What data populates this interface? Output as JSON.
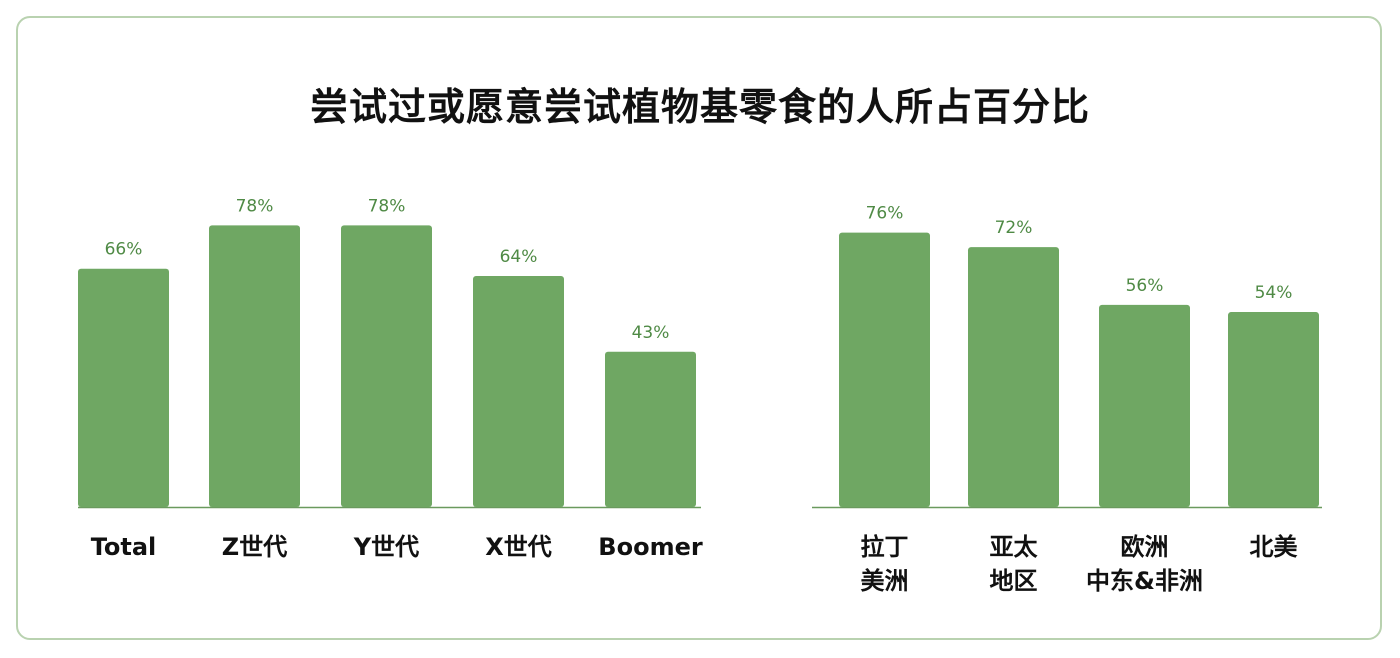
{
  "title": "尝试过或愿意尝试植物基零食的人所占百分比",
  "colors": {
    "bar": "#6fa763",
    "value_label": "#4f8a45",
    "axis": "#6a9a5e",
    "card_border": "#b9d2b0"
  },
  "chart_data": [
    {
      "type": "bar",
      "categories": [
        "Total",
        "Z世代",
        "Y世代",
        "X世代",
        "Boomer"
      ],
      "values": [
        66,
        78,
        78,
        64,
        43
      ],
      "value_labels": [
        "66%",
        "78%",
        "78%",
        "64%",
        "43%"
      ],
      "ylim": [
        0,
        100
      ],
      "grid": false
    },
    {
      "type": "bar",
      "categories": [
        [
          "拉丁",
          "美洲"
        ],
        [
          "亚太",
          "地区"
        ],
        [
          "欧洲",
          "中东&非洲"
        ],
        [
          "北美"
        ]
      ],
      "values": [
        76,
        72,
        56,
        54
      ],
      "value_labels": [
        "76%",
        "72%",
        "56%",
        "54%"
      ],
      "ylim": [
        0,
        100
      ],
      "grid": false
    }
  ]
}
